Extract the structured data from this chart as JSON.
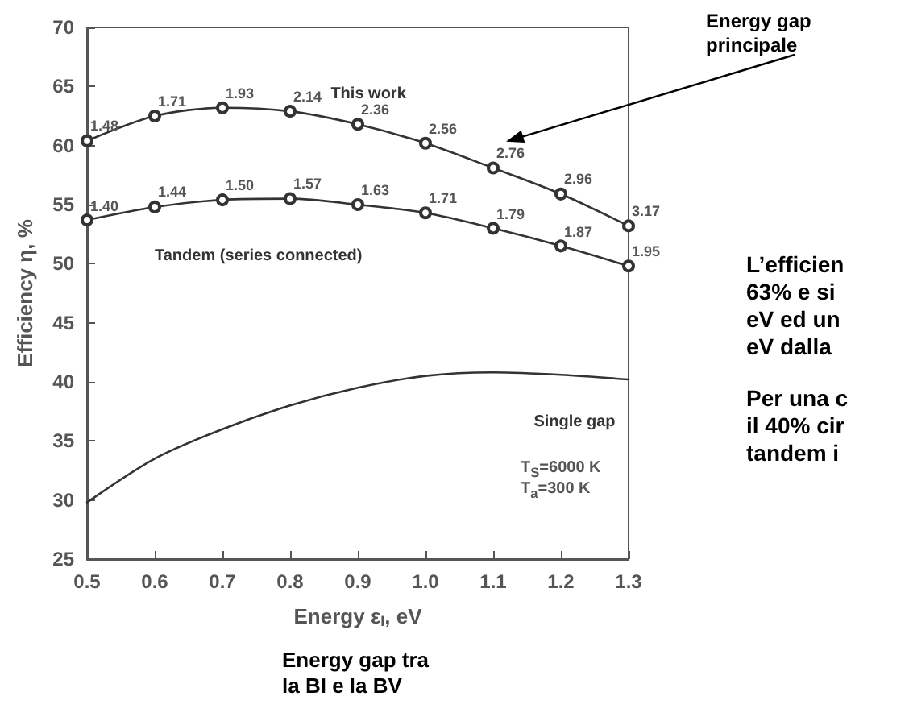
{
  "chart_data": {
    "type": "line",
    "xlabel": "Energy ε$_{I}$, eV",
    "ylabel": "Efficiency η, %",
    "x": [
      0.5,
      0.6,
      0.7,
      0.8,
      0.9,
      1.0,
      1.1,
      1.2,
      1.3
    ],
    "series": [
      {
        "name": "This work",
        "color": "#333333",
        "marker": "circle",
        "values": [
          60.4,
          62.5,
          63.2,
          62.9,
          61.8,
          60.2,
          58.1,
          55.9,
          53.2
        ]
      },
      {
        "name": "Tandem (series connected)",
        "color": "#333333",
        "marker": "circle",
        "values": [
          53.7,
          54.8,
          55.4,
          55.5,
          55.0,
          54.3,
          53.0,
          51.5,
          49.8
        ]
      },
      {
        "name": "Single gap",
        "color": "#333333",
        "marker": "none",
        "values": [
          29.8,
          33.5,
          36.0,
          38.0,
          39.5,
          40.5,
          40.8,
          40.6,
          40.2
        ]
      }
    ],
    "xlim": [
      0.5,
      1.3
    ],
    "xticks": [
      0.5,
      0.6,
      0.7,
      0.8,
      0.9,
      {
        "value": 1.0,
        "label": "1.0"
      },
      1.1,
      1.2,
      1.3
    ],
    "ylim": [
      25,
      70
    ],
    "yticks": [
      25,
      30,
      35,
      40,
      45,
      50,
      55,
      60,
      65,
      70
    ],
    "grid": false,
    "legend": false,
    "line_style": "solid",
    "annotations": [
      "Energy gap\nprincipale",
      "T$_{S}$=6000 K\nT$_{a}$=300 K",
      "Energy gap tra\nla BI e la BV",
      "L’efficien\n63% e si\neV ed un\neV dalla",
      "Per una c\nil 40% cir\ntandem i",
      {
        "text": "1.48",
        "x": 0.5,
        "y": 60.4
      },
      {
        "text": "1.71",
        "x": 0.6,
        "y": 62.5
      },
      {
        "text": "1.93",
        "x": 0.7,
        "y": 63.2
      },
      {
        "text": "2.14",
        "x": 0.8,
        "y": 62.9
      },
      {
        "text": "2.36",
        "x": 0.9,
        "y": 61.8
      },
      {
        "text": "2.56",
        "x": 1.0,
        "y": 60.2
      },
      {
        "text": "2.76",
        "x": 1.1,
        "y": 58.1
      },
      {
        "text": "2.96",
        "x": 1.2,
        "y": 55.9
      },
      {
        "text": "3.17",
        "x": 1.3,
        "y": 53.2
      },
      {
        "text": "1.40",
        "x": 0.5,
        "y": 53.7
      },
      {
        "text": "1.44",
        "x": 0.6,
        "y": 54.8
      },
      {
        "text": "1.50",
        "x": 0.7,
        "y": 55.4
      },
      {
        "text": "1.57",
        "x": 0.8,
        "y": 55.5
      },
      {
        "text": "1.63",
        "x": 0.9,
        "y": 55.0
      },
      {
        "text": "1.71",
        "x": 1.0,
        "y": 54.3
      },
      {
        "text": "1.79",
        "x": 1.1,
        "y": 53.0
      },
      {
        "text": "1.87",
        "x": 1.2,
        "y": 51.5
      },
      {
        "text": "1.95",
        "x": 1.3,
        "y": 49.8
      }
    ]
  }
}
